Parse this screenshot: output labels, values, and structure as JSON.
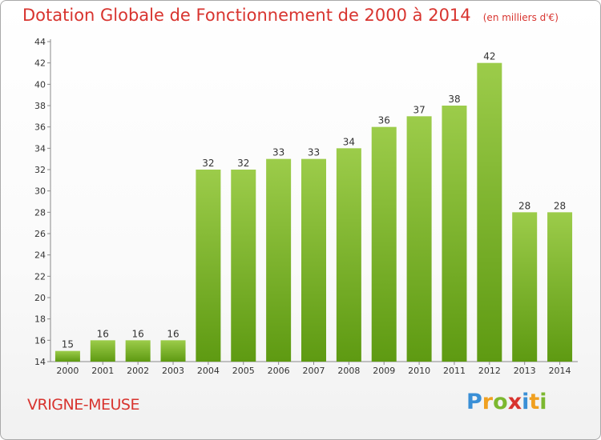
{
  "header": {
    "title": "Dotation Globale de Fonctionnement de 2000 à 2014",
    "unit": "(en milliers d'€)"
  },
  "commune": "VRIGNE-MEUSE",
  "brand": {
    "text": "Proxiti",
    "letters": [
      {
        "char": "P",
        "color": "#3a8fd6"
      },
      {
        "char": "r",
        "color": "#f0a020"
      },
      {
        "char": "o",
        "color": "#7cb82f"
      },
      {
        "char": "x",
        "color": "#d8342f"
      },
      {
        "char": "i",
        "color": "#3a8fd6"
      },
      {
        "char": "t",
        "color": "#f0a020"
      },
      {
        "char": "i",
        "color": "#7cb82f"
      }
    ]
  },
  "colors": {
    "bar_top": "#9ccc4a",
    "bar_bottom": "#5e9a12",
    "accent": "#d8342f"
  },
  "chart_data": {
    "type": "bar",
    "title": "Dotation Globale de Fonctionnement de 2000 à 2014",
    "subtitle": "(en milliers d'€)",
    "categories": [
      "2000",
      "2001",
      "2002",
      "2003",
      "2004",
      "2005",
      "2006",
      "2007",
      "2008",
      "2009",
      "2010",
      "2011",
      "2012",
      "2013",
      "2014"
    ],
    "values": [
      15,
      16,
      16,
      16,
      32,
      32,
      33,
      33,
      34,
      36,
      37,
      38,
      42,
      28,
      28
    ],
    "ylim": [
      14,
      44
    ],
    "yticks": [
      14,
      16,
      18,
      20,
      22,
      24,
      26,
      28,
      30,
      32,
      34,
      36,
      38,
      40,
      42,
      44
    ],
    "grid": false,
    "legend": "none"
  }
}
